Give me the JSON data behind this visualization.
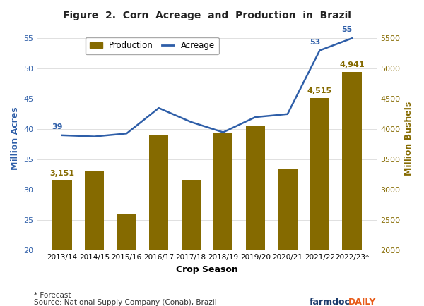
{
  "title": "Figure  2.  Corn  Acreage  and  Production  in  Brazil",
  "categories": [
    "2013/14",
    "2014/15",
    "2015/16",
    "2016/17",
    "2017/18",
    "2018/19",
    "2019/20",
    "2020/21",
    "2021/22",
    "2022/23*"
  ],
  "bar_values": [
    3151,
    3300,
    2600,
    3900,
    3150,
    3950,
    4050,
    3350,
    4515,
    4941
  ],
  "bar_labels": [
    "3,151",
    null,
    null,
    null,
    null,
    null,
    null,
    null,
    "4,515",
    "4,941"
  ],
  "line_values": [
    39,
    38.8,
    39.3,
    43.5,
    41.2,
    39.5,
    42.0,
    42.5,
    53,
    55
  ],
  "line_labels": [
    "39",
    null,
    null,
    null,
    null,
    null,
    null,
    null,
    "53",
    "55"
  ],
  "bar_color": "#856A00",
  "line_color": "#2E5EA8",
  "ylabel_left": "Million Acres",
  "ylabel_right": "Million Bushels",
  "xlabel": "Crop Season",
  "ylim_left": [
    20,
    57
  ],
  "ylim_right": [
    2000,
    5700
  ],
  "yticks_left": [
    20,
    25,
    30,
    35,
    40,
    45,
    50,
    55
  ],
  "yticks_right": [
    2000,
    2500,
    3000,
    3500,
    4000,
    4500,
    5000,
    5500
  ],
  "footnote1": "* Forecast",
  "footnote2": "Source: National Supply Company (Conab), Brazil",
  "farmdoc_text": "farmdoc",
  "daily_text": "DAILY",
  "farmdoc_color": "#1a3a6b",
  "daily_color": "#e85c1a",
  "background_color": "#ffffff"
}
